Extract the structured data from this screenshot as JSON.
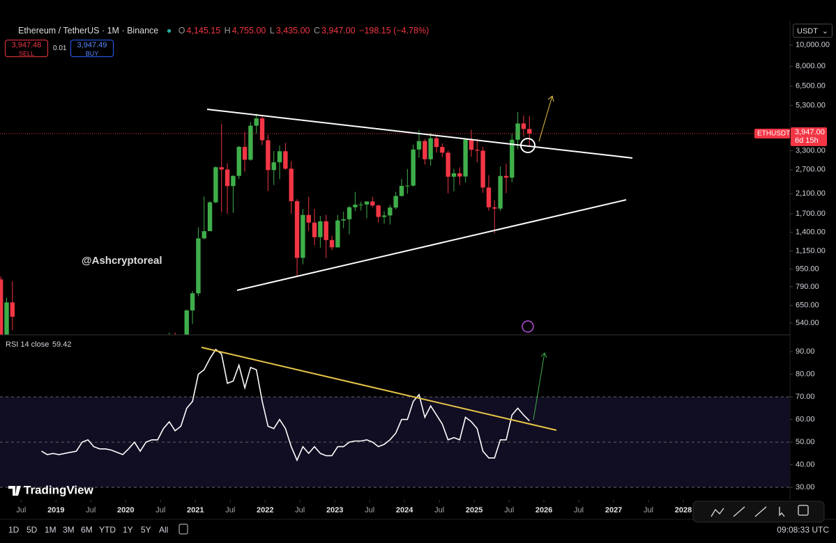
{
  "header": {
    "symbol": "Ethereum / TetherUS · 1M · Binance",
    "o_label": "O",
    "open": "4,145.15",
    "h_label": "H",
    "high": "4,755.00",
    "l_label": "L",
    "low": "3,435.00",
    "c_label": "C",
    "close": "3,947.00",
    "change": "−198.15 (−4.78%)",
    "sell_price": "3,947.48",
    "sell": "SELL",
    "spread": "0.01",
    "buy_price": "3,947.49",
    "buy": "BUY",
    "currency": "USDT",
    "watermark": "@Ashcryptoreal",
    "logo": "TradingView"
  },
  "chart_data": [
    {
      "type": "candlestick",
      "up_color": "#3fae4a",
      "down_color": "#f23645",
      "log_scale": true,
      "ylim": [
        480,
        12900
      ],
      "xlim": [
        "2018-03",
        "2029-07"
      ],
      "yticks": [
        {
          "value": 10000,
          "label": "10,000.00"
        },
        {
          "value": 8000,
          "label": "8,000.00"
        },
        {
          "value": 6500,
          "label": "6,500.00"
        },
        {
          "value": 5300,
          "label": "5,300.00"
        },
        {
          "value": 3300,
          "label": "3,300.00"
        },
        {
          "value": 2700,
          "label": "2,700.00"
        },
        {
          "value": 2100,
          "label": "2,100.00"
        },
        {
          "value": 1700,
          "label": "1,700.00"
        },
        {
          "value": 1400,
          "label": "1,400.00"
        },
        {
          "value": 1150,
          "label": "1,150.00"
        },
        {
          "value": 950,
          "label": "950.00"
        },
        {
          "value": 790,
          "label": "790.00"
        },
        {
          "value": 650,
          "label": "650.00"
        },
        {
          "value": 540,
          "label": "540.00"
        }
      ],
      "xticks": [
        {
          "value": "2018-07",
          "label": "Jul"
        },
        {
          "value": "2019-01",
          "label": "2019"
        },
        {
          "value": "2019-07",
          "label": "Jul"
        },
        {
          "value": "2020-01",
          "label": "2020"
        },
        {
          "value": "2020-07",
          "label": "Jul"
        },
        {
          "value": "2021-01",
          "label": "2021"
        },
        {
          "value": "2021-07",
          "label": "Jul"
        },
        {
          "value": "2022-01",
          "label": "2022"
        },
        {
          "value": "2022-07",
          "label": "Jul"
        },
        {
          "value": "2023-01",
          "label": "2023"
        },
        {
          "value": "2023-07",
          "label": "Jul"
        },
        {
          "value": "2024-01",
          "label": "2024"
        },
        {
          "value": "2024-07",
          "label": "Jul"
        },
        {
          "value": "2025-01",
          "label": "2025"
        },
        {
          "value": "2025-07",
          "label": "Jul"
        },
        {
          "value": "2026-01",
          "label": "2026"
        },
        {
          "value": "2026-07",
          "label": "Jul"
        },
        {
          "value": "2027-01",
          "label": "2027"
        },
        {
          "value": "2027-07",
          "label": "Jul"
        },
        {
          "value": "2028-01",
          "label": "2028"
        }
      ],
      "price_badge": {
        "symbol": "ETHUSDT",
        "price": {
          "value": 3947,
          "label": "3,947.00"
        },
        "countdown": "6d 15h"
      },
      "x": [
        "2018-03",
        "2018-04",
        "2018-05",
        "2020-08",
        "2020-09",
        "2020-10",
        "2020-11",
        "2020-12",
        "2021-01",
        "2021-02",
        "2021-03",
        "2021-04",
        "2021-05",
        "2021-06",
        "2021-07",
        "2021-08",
        "2021-09",
        "2021-10",
        "2021-11",
        "2021-12",
        "2022-01",
        "2022-02",
        "2022-03",
        "2022-04",
        "2022-05",
        "2022-06",
        "2022-07",
        "2022-08",
        "2022-09",
        "2022-10",
        "2022-11",
        "2022-12",
        "2023-01",
        "2023-02",
        "2023-03",
        "2023-04",
        "2023-05",
        "2023-06",
        "2023-07",
        "2023-08",
        "2023-09",
        "2023-10",
        "2023-11",
        "2023-12",
        "2024-01",
        "2024-02",
        "2024-03",
        "2024-04",
        "2024-05",
        "2024-06",
        "2024-07",
        "2024-08",
        "2024-09",
        "2024-10",
        "2024-11",
        "2024-12",
        "2025-01",
        "2025-02",
        "2025-03",
        "2025-04",
        "2025-05",
        "2025-06",
        "2025-07",
        "2025-08",
        "2025-09",
        "2025-10"
      ],
      "open": [
        853,
        396,
        670,
        346,
        435,
        360,
        386,
        616,
        737,
        1313,
        1416,
        1918,
        2772,
        2707,
        2275,
        2531,
        3433,
        3000,
        4288,
        4630,
        3680,
        2690,
        2920,
        3280,
        2730,
        1940,
        1070,
        1680,
        1550,
        1330,
        1570,
        1290,
        1195,
        1585,
        1605,
        1820,
        1870,
        1875,
        1935,
        1855,
        1645,
        1670,
        1815,
        2050,
        2280,
        2285,
        3340,
        3650,
        3015,
        3760,
        3430,
        3230,
        2510,
        2600,
        2515,
        3705,
        3330,
        3300,
        2240,
        1820,
        1795,
        2530,
        2485,
        3700,
        4390,
        4145
      ],
      "high": [
        880,
        705,
        838,
        488,
        488,
        420,
        622,
        755,
        1475,
        2040,
        1943,
        2800,
        4372,
        2890,
        2550,
        3470,
        4028,
        4460,
        4870,
        4780,
        3900,
        3290,
        3480,
        3580,
        2950,
        1980,
        1790,
        2030,
        1790,
        1660,
        1680,
        1350,
        1680,
        1740,
        1850,
        2140,
        1930,
        1930,
        2030,
        1870,
        1750,
        1865,
        2140,
        2450,
        2720,
        3520,
        4100,
        3730,
        3980,
        3890,
        3560,
        3300,
        2730,
        2770,
        3740,
        4110,
        3740,
        3440,
        2550,
        1960,
        2790,
        2880,
        3940,
        4955,
        4770,
        4755
      ],
      "low": [
        368,
        366,
        500,
        335,
        308,
        335,
        373,
        535,
        715,
        1300,
        1422,
        1900,
        1728,
        1700,
        1718,
        2450,
        2650,
        2970,
        3950,
        3500,
        2160,
        2300,
        2450,
        2700,
        1700,
        880,
        1000,
        1420,
        1220,
        1190,
        1070,
        1160,
        1190,
        1460,
        1370,
        1750,
        1760,
        1620,
        1820,
        1550,
        1530,
        1520,
        1780,
        2040,
        2100,
        2260,
        3060,
        2850,
        2820,
        3230,
        3080,
        2110,
        2150,
        2300,
        2360,
        3100,
        2920,
        2120,
        1760,
        1385,
        1750,
        2110,
        2370,
        3350,
        3815,
        3435
      ],
      "close": [
        396,
        670,
        577,
        435,
        360,
        386,
        616,
        737,
        1313,
        1416,
        1918,
        2772,
        2707,
        2275,
        2531,
        3433,
        3000,
        4288,
        4630,
        3680,
        2690,
        2920,
        3280,
        2730,
        1940,
        1070,
        1680,
        1550,
        1330,
        1570,
        1290,
        1195,
        1585,
        1605,
        1820,
        1870,
        1875,
        1935,
        1855,
        1645,
        1670,
        1815,
        2050,
        2280,
        2285,
        3340,
        3650,
        3015,
        3760,
        3430,
        3230,
        2510,
        2600,
        2515,
        3705,
        3330,
        3300,
        2240,
        1820,
        1795,
        2530,
        2485,
        3700,
        4390,
        4145,
        3947
      ]
    },
    {
      "type": "line",
      "title": "RSI 14 close",
      "last_value": 59.42,
      "color": "#ffffff",
      "ylim": [
        25.4,
        96.2
      ],
      "band": [
        30,
        70
      ],
      "midline": 50,
      "yticks": [
        {
          "value": 90,
          "label": "90.00"
        },
        {
          "value": 80,
          "label": "80.00"
        },
        {
          "value": 70,
          "label": "70.00"
        },
        {
          "value": 60,
          "label": "60.00"
        },
        {
          "value": 50,
          "label": "50.00"
        },
        {
          "value": 40,
          "label": "40.00"
        },
        {
          "value": 30,
          "label": "30.00"
        }
      ],
      "x": [
        "2018-10",
        "2018-11",
        "2018-12",
        "2019-01",
        "2019-02",
        "2019-03",
        "2019-04",
        "2019-05",
        "2019-06",
        "2019-07",
        "2019-08",
        "2019-09",
        "2019-10",
        "2019-11",
        "2019-12",
        "2020-01",
        "2020-02",
        "2020-03",
        "2020-04",
        "2020-05",
        "2020-06",
        "2020-07",
        "2020-08",
        "2020-09",
        "2020-10",
        "2020-11",
        "2020-12",
        "2021-01",
        "2021-02",
        "2021-03",
        "2021-04",
        "2021-05",
        "2021-06",
        "2021-07",
        "2021-08",
        "2021-09",
        "2021-10",
        "2021-11",
        "2021-12",
        "2022-01",
        "2022-02",
        "2022-03",
        "2022-04",
        "2022-05",
        "2022-06",
        "2022-07",
        "2022-08",
        "2022-09",
        "2022-10",
        "2022-11",
        "2022-12",
        "2023-01",
        "2023-02",
        "2023-03",
        "2023-04",
        "2023-05",
        "2023-06",
        "2023-07",
        "2023-08",
        "2023-09",
        "2023-10",
        "2023-11",
        "2023-12",
        "2024-01",
        "2024-02",
        "2024-03",
        "2024-04",
        "2024-05",
        "2024-06",
        "2024-07",
        "2024-08",
        "2024-09",
        "2024-10",
        "2024-11",
        "2024-12",
        "2025-01",
        "2025-02",
        "2025-03",
        "2025-04",
        "2025-05",
        "2025-06",
        "2025-07",
        "2025-08",
        "2025-09",
        "2025-10"
      ],
      "values": [
        46,
        44.5,
        45,
        44.5,
        45,
        45.5,
        46,
        50,
        51,
        48,
        47,
        47,
        46.5,
        45.5,
        44.5,
        47,
        50,
        46,
        50,
        51,
        51,
        56,
        59,
        55,
        57,
        65,
        68,
        80,
        82,
        87,
        91,
        89,
        76,
        77,
        84,
        74,
        83,
        82,
        68,
        57,
        56,
        60,
        56,
        48,
        42,
        48,
        45,
        48,
        45,
        44,
        44,
        48,
        48,
        50,
        50.5,
        50.5,
        51,
        50,
        48,
        49,
        51,
        54,
        60,
        60,
        68,
        71,
        61,
        66,
        62,
        58,
        51,
        52,
        51,
        61,
        59,
        56,
        46,
        43,
        43,
        51,
        51,
        62,
        65,
        62,
        59.42
      ]
    }
  ],
  "toolbar": {
    "ranges": [
      "1D",
      "5D",
      "1M",
      "3M",
      "6M",
      "YTD",
      "1Y",
      "5Y",
      "All"
    ],
    "clock": "09:08:33 UTC"
  }
}
